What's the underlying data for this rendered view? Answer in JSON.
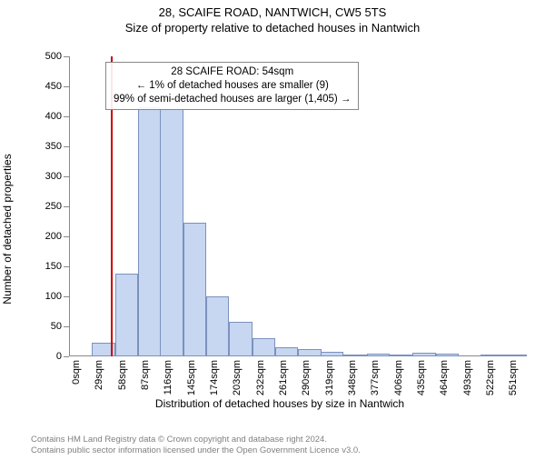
{
  "title_line1": "28, SCAIFE ROAD, NANTWICH, CW5 5TS",
  "title_line2": "Size of property relative to detached houses in Nantwich",
  "ylabel": "Number of detached properties",
  "xlabel": "Distribution of detached houses by size in Nantwich",
  "attribution_line1": "Contains HM Land Registry data © Crown copyright and database right 2024.",
  "attribution_line2": "Contains public sector information licensed under the Open Government Licence v3.0.",
  "chart": {
    "type": "histogram",
    "background_color": "#ffffff",
    "grid_color": "#bfbfbf",
    "bar_fill": "#c7d6f1",
    "bar_stroke": "#7b92bd",
    "ref_line_color": "#cc0000",
    "ymax": 500,
    "ytick_step": 50,
    "xmax": 577,
    "ref_value": 54,
    "xtick_step": 29,
    "xtick_unit": "sqm",
    "bin_width": 29,
    "bins": [
      {
        "start": 0,
        "count": 0
      },
      {
        "start": 29,
        "count": 22
      },
      {
        "start": 58,
        "count": 138
      },
      {
        "start": 87,
        "count": 415
      },
      {
        "start": 115,
        "count": 412
      },
      {
        "start": 144,
        "count": 222
      },
      {
        "start": 173,
        "count": 100
      },
      {
        "start": 202,
        "count": 58
      },
      {
        "start": 231,
        "count": 30
      },
      {
        "start": 260,
        "count": 15
      },
      {
        "start": 289,
        "count": 12
      },
      {
        "start": 317,
        "count": 8
      },
      {
        "start": 346,
        "count": 3
      },
      {
        "start": 375,
        "count": 4
      },
      {
        "start": 404,
        "count": 2
      },
      {
        "start": 433,
        "count": 6
      },
      {
        "start": 462,
        "count": 5
      },
      {
        "start": 490,
        "count": 0
      },
      {
        "start": 519,
        "count": 1
      },
      {
        "start": 548,
        "count": 1
      }
    ],
    "annotation": {
      "line1": "28 SCAIFE ROAD: 54sqm",
      "line2": "← 1% of detached houses are smaller (9)",
      "line3": "99% of semi-detached houses are larger (1,405) →"
    },
    "title_fontsize": 13,
    "label_fontsize": 12,
    "tick_fontsize": 11
  }
}
